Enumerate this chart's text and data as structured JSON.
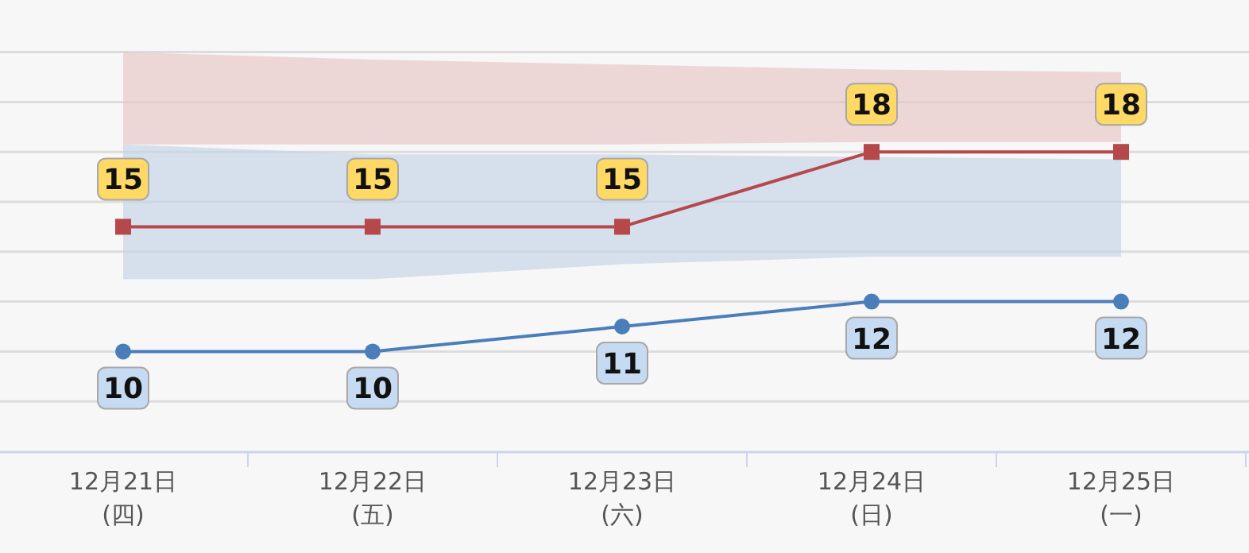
{
  "chart_data": {
    "type": "line",
    "categories": [
      "12月21日\n(四)",
      "12月22日\n(五)",
      "12月23日\n(六)",
      "12月24日\n(日)",
      "12月25日\n(一)"
    ],
    "series": [
      {
        "color": "#b5484b",
        "marker": "square",
        "values": [
          15,
          15,
          15,
          18,
          18
        ],
        "lower": [
          18.3,
          18.3,
          18.3,
          18.4,
          18.4
        ],
        "upper": [
          22,
          21.7,
          21.5,
          21.3,
          21.2
        ]
      },
      {
        "color": "#4a7ebb",
        "marker": "circle",
        "values": [
          10,
          10,
          11,
          12,
          12
        ],
        "lower": [
          12.9,
          12.9,
          13.5,
          13.8,
          13.8
        ],
        "upper": [
          18.3,
          17.9,
          17.9,
          17.8,
          17.7
        ]
      }
    ],
    "ylim": [
      6,
      24
    ],
    "yticks": [
      {
        "value": 8,
        "label": null
      },
      {
        "value": 10,
        "label": null
      },
      {
        "value": 12,
        "label": null
      },
      {
        "value": 14,
        "label": null
      },
      {
        "value": 16,
        "label": null
      },
      {
        "value": 18,
        "label": null
      },
      {
        "value": 20,
        "label": null
      },
      {
        "value": 22,
        "label": null
      }
    ],
    "tick_labels": "x",
    "grid": "y",
    "data_labels": true
  }
}
